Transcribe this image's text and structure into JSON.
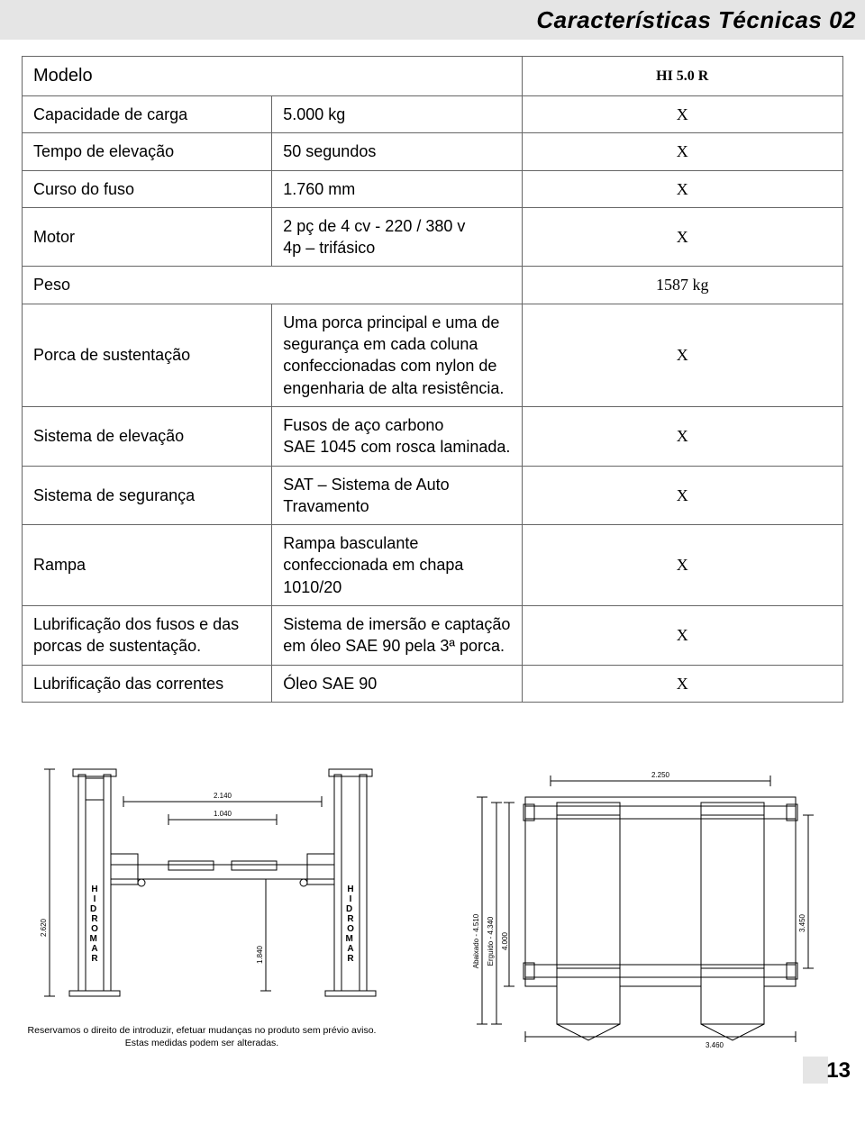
{
  "header": {
    "title": "Características Técnicas 02"
  },
  "table": {
    "model_label": "Modelo",
    "model_value": "HI 5.0 R",
    "rows": [
      {
        "label": "Capacidade de carga",
        "value": "5.000 kg",
        "mark": "X"
      },
      {
        "label": "Tempo de elevação",
        "value": "50 segundos",
        "mark": "X"
      },
      {
        "label": "Curso do fuso",
        "value": "1.760 mm",
        "mark": "X"
      },
      {
        "label": "Motor",
        "value": "2 pç de 4 cv - 220 / 380 v\n4p – trifásico",
        "mark": "X"
      },
      {
        "label": "Peso",
        "value": "",
        "mark": "1587 kg"
      },
      {
        "label": "Porca de sustentação",
        "value": "Uma porca principal e uma de segurança em cada coluna confeccionadas com nylon de engenharia de alta resistência.",
        "mark": "X"
      },
      {
        "label": "Sistema de elevação",
        "value": "Fusos de aço carbono\nSAE 1045 com rosca laminada.",
        "mark": "X"
      },
      {
        "label": "Sistema de segurança",
        "value": "SAT – Sistema de Auto\nTravamento",
        "mark": "X"
      },
      {
        "label": "Rampa",
        "value": "Rampa basculante confeccionada em chapa 1010/20",
        "mark": "X"
      },
      {
        "label": "Lubrificação dos fusos e das porcas de sustentação.",
        "value": "Sistema de imersão e captação em óleo SAE 90 pela 3ª porca.",
        "mark": "X"
      },
      {
        "label": "Lubrificação das correntes",
        "value": "Óleo SAE 90",
        "mark": "X"
      }
    ]
  },
  "diagrams": {
    "stroke": "#000000",
    "stroke_width": 1,
    "front": {
      "brand": "HIDROMAR",
      "dims": {
        "h_total": "2.620",
        "w_inner": "2.140",
        "w_ramp": "1.040",
        "h_clear": "1.840"
      }
    },
    "top": {
      "dims": {
        "w_top": "2.250",
        "h_down": "Abaixado - 4.510",
        "h_up": "Erguido - 4.340",
        "h_body": "4.000",
        "h_rail": "3.450",
        "w_base": "3.460"
      }
    }
  },
  "footnote": "Reservamos o direito de introduzir, efetuar mudanças no produto sem prévio aviso. Estas medidas podem ser alteradas.",
  "page_number": "13"
}
